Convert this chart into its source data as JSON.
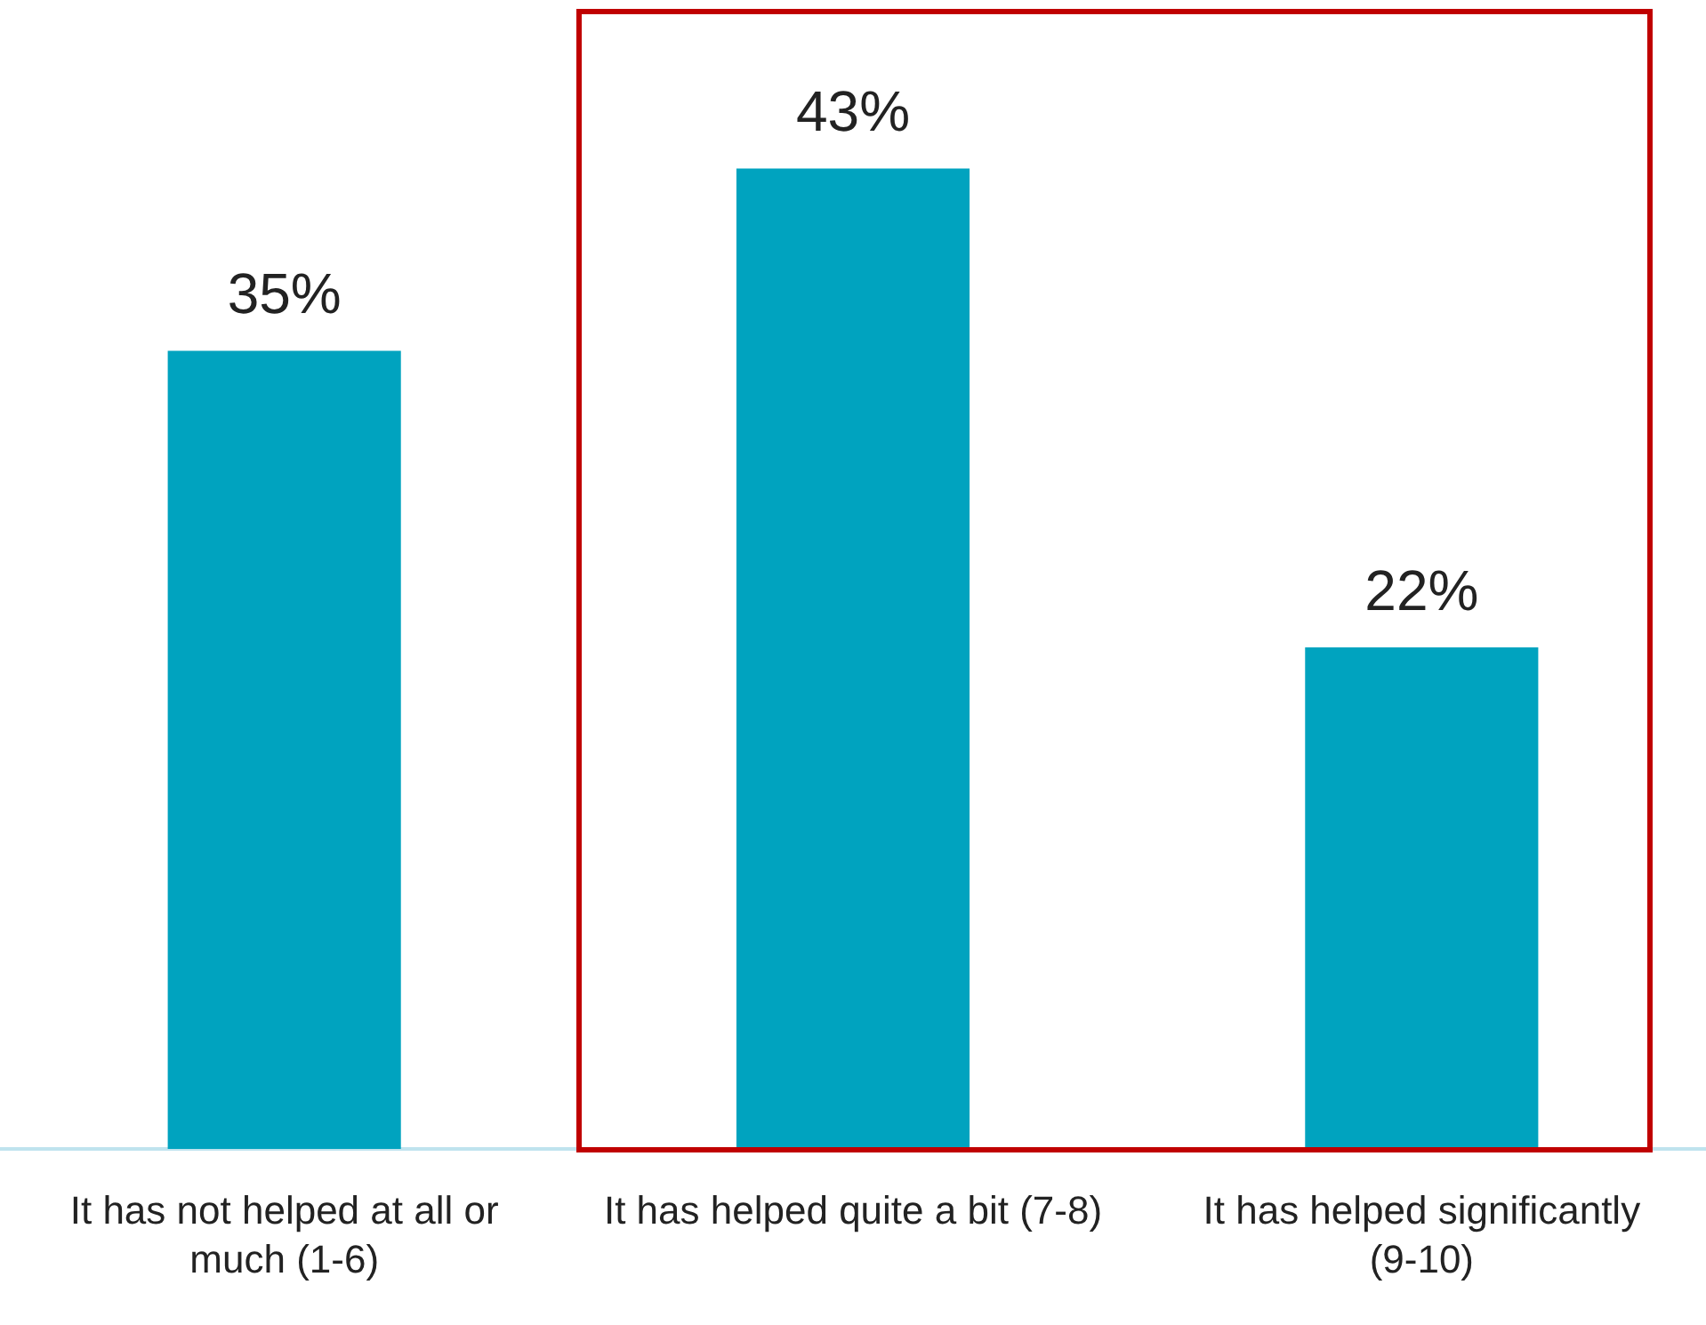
{
  "chart_data": {
    "type": "bar",
    "categories": [
      "It has not helped at all or much (1-6)",
      "It has helped quite a bit (7-8)",
      "It has helped significantly (9-10)"
    ],
    "values": [
      35,
      43,
      22
    ],
    "value_labels": [
      "35%",
      "43%",
      "22%"
    ],
    "color": "#00a3bf",
    "legend": false,
    "grid": false
  }
}
